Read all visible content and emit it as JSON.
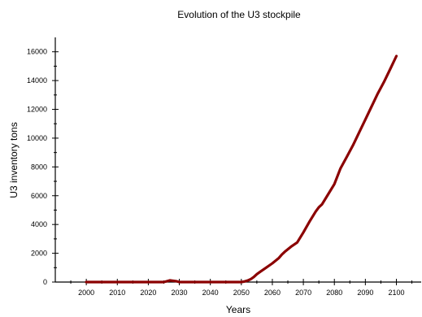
{
  "chart_data": {
    "type": "line",
    "title": "Evolution of the U3 stockpile",
    "xlabel": "Years",
    "ylabel": "U3 inventory tons",
    "xlim": [
      1990,
      2108
    ],
    "ylim": [
      0,
      17000
    ],
    "xticks": [
      2000,
      2010,
      2020,
      2030,
      2040,
      2050,
      2060,
      2070,
      2080,
      2090,
      2100
    ],
    "yticks": [
      0,
      2000,
      4000,
      6000,
      8000,
      10000,
      12000,
      14000,
      16000
    ],
    "grid": false,
    "line_color": "#8b0000",
    "series": [
      {
        "x": [
          2000,
          2010,
          2020,
          2025,
          2027,
          2029,
          2030,
          2040,
          2050,
          2051,
          2052,
          2053,
          2054,
          2055,
          2056,
          2057,
          2058,
          2060,
          2062,
          2063,
          2064,
          2066,
          2068,
          2070,
          2072,
          2074,
          2075,
          2076,
          2078,
          2080,
          2082,
          2084,
          2086,
          2088,
          2090,
          2092,
          2094,
          2096,
          2098,
          2100
        ],
        "y": [
          0,
          0,
          0,
          0,
          120,
          60,
          0,
          0,
          0,
          40,
          100,
          200,
          350,
          550,
          700,
          850,
          1000,
          1300,
          1650,
          1900,
          2100,
          2450,
          2750,
          3450,
          4200,
          4900,
          5200,
          5400,
          6100,
          6800,
          7900,
          8700,
          9500,
          10400,
          11300,
          12200,
          13100,
          13900,
          14800,
          15700
        ]
      }
    ]
  }
}
